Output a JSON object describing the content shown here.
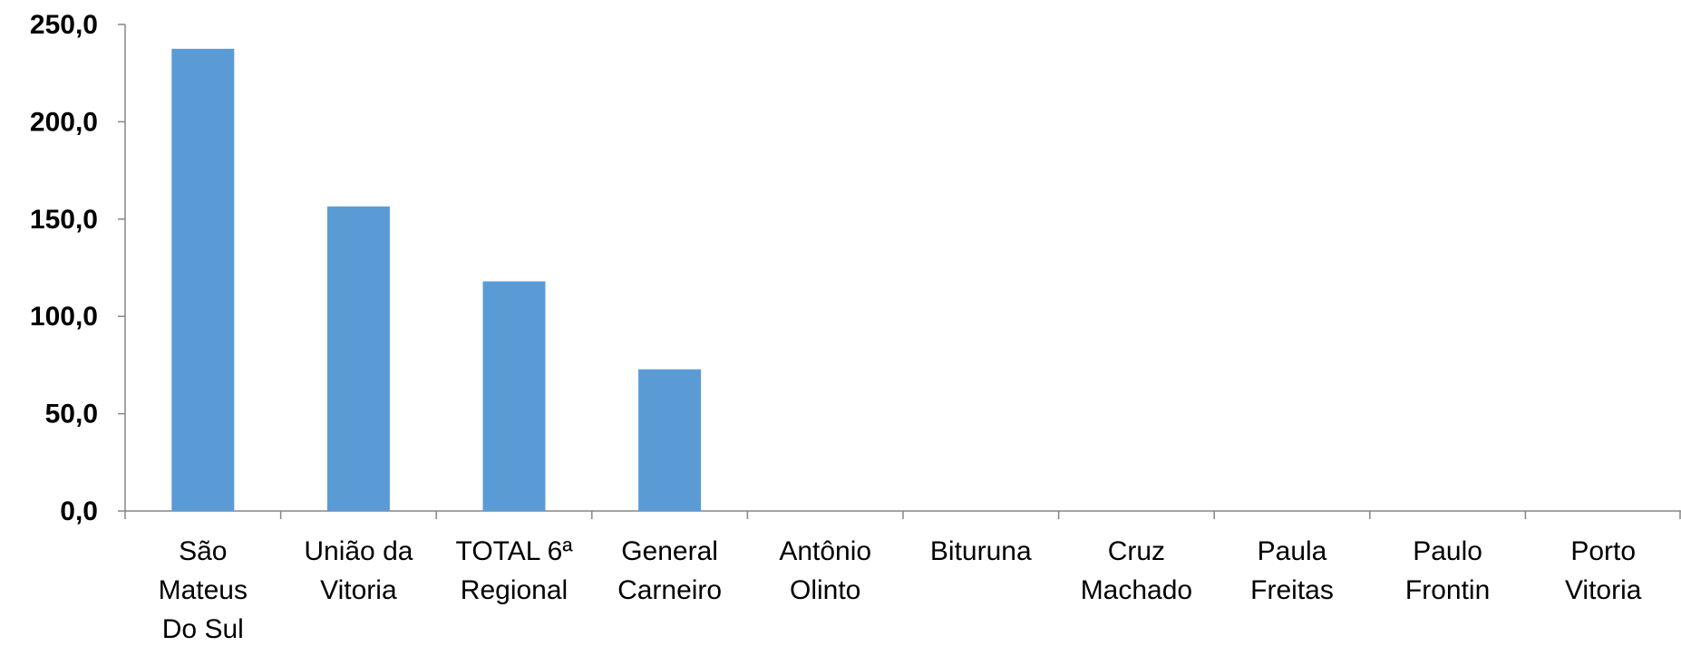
{
  "chart_data": {
    "type": "bar",
    "title": "",
    "xlabel": "",
    "ylabel": "",
    "ylim": [
      0,
      250
    ],
    "y_ticks": [
      "0,0",
      "50,0",
      "100,0",
      "150,0",
      "200,0",
      "250,0"
    ],
    "y_tick_values": [
      0,
      50,
      100,
      150,
      200,
      250
    ],
    "grid": false,
    "legend": "none",
    "bar_color": "#5b9bd5",
    "categories": [
      [
        "São",
        "Mateus",
        "Do Sul"
      ],
      [
        "União da",
        "Vitoria"
      ],
      [
        "TOTAL 6ª",
        "Regional"
      ],
      [
        "General",
        "Carneiro"
      ],
      [
        "Antônio",
        "Olinto"
      ],
      [
        "Bituruna"
      ],
      [
        "Cruz",
        "Machado"
      ],
      [
        "Paula",
        "Freitas"
      ],
      [
        "Paulo",
        "Frontin"
      ],
      [
        "Porto",
        "Vitoria"
      ]
    ],
    "values": [
      237.5,
      156.5,
      118.0,
      72.8,
      0,
      0,
      0,
      0,
      0,
      0
    ]
  }
}
